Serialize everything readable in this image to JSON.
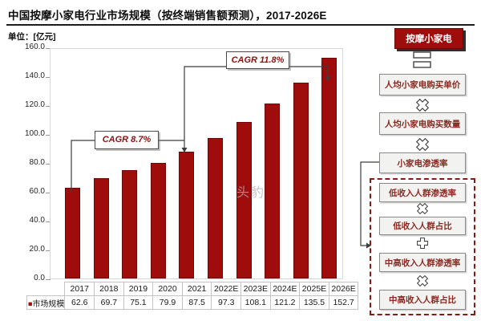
{
  "title": "中国按摩小家电行业市场规模（按终端销售额预测），2017-2026E",
  "unit_label": "单位：",
  "unit_value": "[亿元]",
  "watermark": "头豹",
  "chart_data": {
    "type": "bar",
    "title": "中国按摩小家电行业市场规模（按终端销售额预测），2017-2026E",
    "unit": "亿元",
    "categories": [
      "2017",
      "2018",
      "2019",
      "2020",
      "2021",
      "2022E",
      "2023E",
      "2024E",
      "2025E",
      "2026E"
    ],
    "series": [
      {
        "name": "市场规模",
        "values": [
          62.6,
          69.7,
          75.1,
          79.9,
          87.5,
          97.3,
          108.1,
          121.2,
          135.5,
          152.7
        ]
      }
    ],
    "ylim": [
      0,
      160
    ],
    "ytick_step": 20,
    "yticks": [
      "0.0",
      "20.0",
      "40.0",
      "60.0",
      "80.0",
      "100.0",
      "120.0",
      "140.0",
      "160.0"
    ],
    "grid": false,
    "legend_position": "bottom-left-table",
    "bar_color": "#9e0d0c",
    "annotations": [
      {
        "label": "CAGR 8.7%",
        "span": [
          "2017",
          "2021"
        ]
      },
      {
        "label": "CAGR 11.8%",
        "span": [
          "2021",
          "2026E"
        ]
      }
    ]
  },
  "flow_panel": {
    "root": "按摩小家电",
    "operators": {
      "equals": "=",
      "multiply": "×",
      "plus": "+"
    },
    "main_boxes": [
      "人均小家电购买单价",
      "人均小家电购买数量",
      "小家电渗透率"
    ],
    "sub_boxes": [
      "低收入人群渗透率",
      "低收入人群占比",
      "中高收入人群渗透率",
      "中高收入人群占比"
    ]
  },
  "colors": {
    "bar": "#9e0d0c",
    "accent_red": "#8b1a14",
    "flow_text": "#8b2a22",
    "box_bg": "#f2f2f0",
    "line": "#3d3d3d"
  }
}
